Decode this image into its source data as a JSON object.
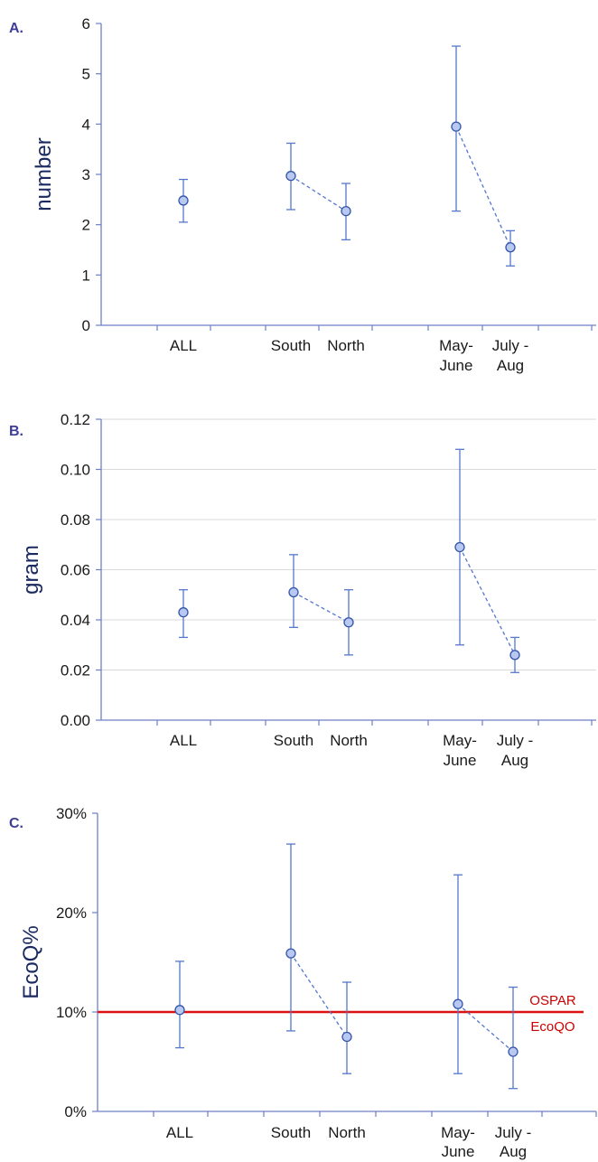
{
  "colors": {
    "marker_fill": "#b8c8f0",
    "marker_stroke": "#3355aa",
    "line": "#5577cc",
    "axis": "#6d7fc7",
    "grid": "#d9d9d9",
    "reference": "#dd1111"
  },
  "chart_data": [
    {
      "type": "scatter",
      "panel_label": "A.",
      "ylabel": "number",
      "ylim": [
        0,
        6
      ],
      "yticks": [
        "0",
        "1",
        "2",
        "3",
        "4",
        "5",
        "6"
      ],
      "grid": false,
      "categories": [
        "ALL",
        "South",
        "North",
        "May-\nJune",
        "July -\nAug"
      ],
      "points": [
        {
          "category": "ALL",
          "value": 2.48,
          "low": 2.05,
          "high": 2.9
        },
        {
          "category": "South",
          "value": 2.97,
          "low": 2.3,
          "high": 3.62
        },
        {
          "category": "North",
          "value": 2.27,
          "low": 1.7,
          "high": 2.82
        },
        {
          "category": "May-June",
          "value": 3.95,
          "low": 2.27,
          "high": 5.55
        },
        {
          "category": "July - Aug",
          "value": 1.55,
          "low": 1.18,
          "high": 1.88
        }
      ],
      "dashed_links": [
        [
          "South",
          "North"
        ],
        [
          "May-June",
          "July - Aug"
        ]
      ]
    },
    {
      "type": "scatter",
      "panel_label": "B.",
      "ylabel": "gram",
      "ylim": [
        0,
        0.12
      ],
      "yticks": [
        "0.00",
        "0.02",
        "0.04",
        "0.06",
        "0.08",
        "0.10",
        "0.12"
      ],
      "grid": true,
      "categories": [
        "ALL",
        "South",
        "North",
        "May-\nJune",
        "July -\nAug"
      ],
      "points": [
        {
          "category": "ALL",
          "value": 0.043,
          "low": 0.033,
          "high": 0.052
        },
        {
          "category": "South",
          "value": 0.051,
          "low": 0.037,
          "high": 0.066
        },
        {
          "category": "North",
          "value": 0.039,
          "low": 0.026,
          "high": 0.052
        },
        {
          "category": "May-June",
          "value": 0.069,
          "low": 0.03,
          "high": 0.108
        },
        {
          "category": "July - Aug",
          "value": 0.026,
          "low": 0.019,
          "high": 0.033
        }
      ],
      "dashed_links": [
        [
          "South",
          "North"
        ],
        [
          "May-June",
          "July - Aug"
        ]
      ]
    },
    {
      "type": "scatter",
      "panel_label": "C.",
      "ylabel": "EcoQ%",
      "ylim": [
        0,
        0.3
      ],
      "yticks": [
        "0%",
        "10%",
        "20%",
        "30%"
      ],
      "grid": false,
      "categories": [
        "ALL",
        "South",
        "North",
        "May-\nJune",
        "July -\nAug"
      ],
      "points": [
        {
          "category": "ALL",
          "value": 0.102,
          "low": 0.064,
          "high": 0.151
        },
        {
          "category": "South",
          "value": 0.159,
          "low": 0.081,
          "high": 0.269
        },
        {
          "category": "North",
          "value": 0.075,
          "low": 0.038,
          "high": 0.13
        },
        {
          "category": "May-June",
          "value": 0.108,
          "low": 0.038,
          "high": 0.238
        },
        {
          "category": "July - Aug",
          "value": 0.06,
          "low": 0.023,
          "high": 0.125
        }
      ],
      "dashed_links": [
        [
          "South",
          "North"
        ],
        [
          "May-June",
          "July - Aug"
        ]
      ],
      "reference_line": {
        "value": 0.1,
        "label_line1": "OSPAR",
        "label_line2": "EcoQO"
      }
    }
  ]
}
